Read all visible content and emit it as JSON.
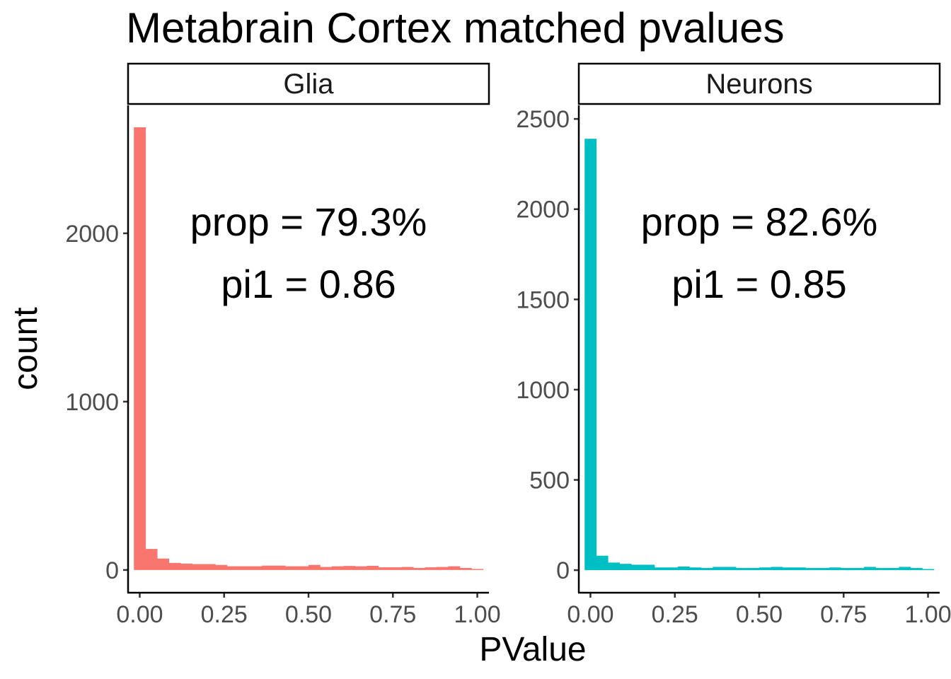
{
  "chart_data": {
    "type": "bar",
    "title": "Metabrain Cortex matched pvalues",
    "xlabel": "PValue",
    "ylabel": "count",
    "x_ticks": [
      "0.00",
      "0.25",
      "0.50",
      "0.75",
      "1.00"
    ],
    "xlim": [
      -0.0345,
      1.0345
    ],
    "bin_width": 0.0345,
    "bin_centers": [
      0.0,
      0.0345,
      0.069,
      0.1035,
      0.138,
      0.1724,
      0.2069,
      0.2414,
      0.2759,
      0.3103,
      0.3448,
      0.3793,
      0.4138,
      0.4483,
      0.4828,
      0.5172,
      0.5517,
      0.5862,
      0.6207,
      0.6552,
      0.6897,
      0.7241,
      0.7586,
      0.7931,
      0.8276,
      0.8621,
      0.8966,
      0.931,
      0.9655,
      1.0
    ],
    "panels": [
      {
        "strip": "Glia",
        "color": "#F8766D",
        "ylim": [
          -135,
          2760
        ],
        "y_ticks": [
          0,
          1000,
          2000
        ],
        "y_tick_labels": [
          "0",
          "1000",
          "2000"
        ],
        "annotations": [
          "prop = 79.3%",
          "pi1 = 0.86"
        ],
        "values": [
          2630,
          125,
          68,
          42,
          38,
          35,
          35,
          30,
          22,
          22,
          22,
          26,
          26,
          22,
          22,
          30,
          18,
          22,
          24,
          22,
          25,
          16,
          16,
          18,
          12,
          16,
          18,
          22,
          12,
          6
        ]
      },
      {
        "strip": "Neurons",
        "color": "#00BFC4",
        "ylim": [
          -125,
          2575
        ],
        "y_ticks": [
          0,
          500,
          1000,
          1500,
          2000,
          2500
        ],
        "y_tick_labels": [
          "0",
          "500",
          "1000",
          "1500",
          "2000",
          "2500"
        ],
        "annotations": [
          "prop = 82.6%",
          "pi1 = 0.85"
        ],
        "values": [
          2390,
          80,
          42,
          35,
          30,
          30,
          15,
          15,
          20,
          15,
          12,
          18,
          18,
          12,
          12,
          15,
          18,
          15,
          15,
          12,
          12,
          15,
          12,
          12,
          18,
          12,
          12,
          18,
          12,
          6
        ]
      }
    ]
  }
}
